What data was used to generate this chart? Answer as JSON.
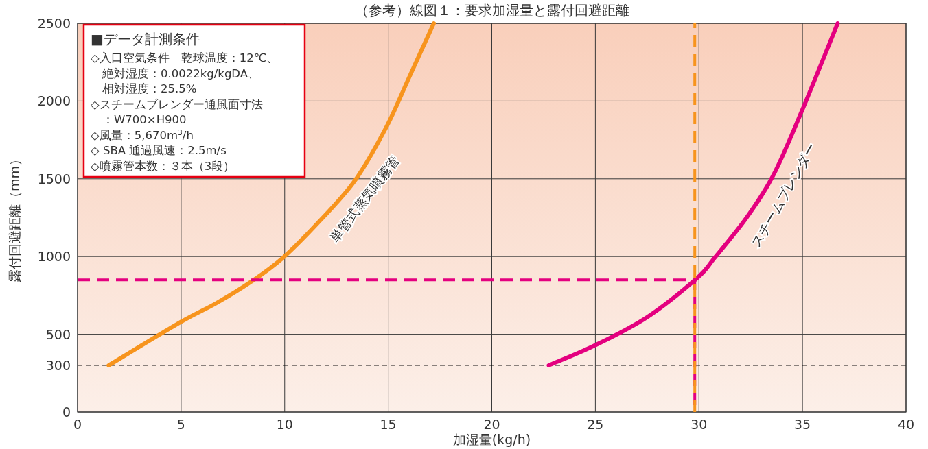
{
  "chart_data": {
    "type": "line",
    "title": "（参考）線図１：要求加湿量と露付回避距離",
    "xlabel": "加湿量(kg/h)",
    "ylabel": "露付回避距離（mm）",
    "xlim": [
      0,
      40
    ],
    "ylim": [
      0,
      2500
    ],
    "xticks": [
      0,
      5,
      10,
      15,
      20,
      25,
      30,
      35,
      40
    ],
    "yticks": [
      0,
      300,
      500,
      1000,
      1500,
      2000,
      2500
    ],
    "grid": true,
    "legend": false,
    "marker": "none",
    "series": [
      {
        "name": "単管式蒸気噴霧管",
        "color": "#f7941d",
        "x": [
          1.5,
          5.0,
          6.7,
          8.4,
          9.9,
          11.7,
          13.4,
          14.9,
          16.0,
          17.2
        ],
        "values": [
          300,
          580,
          700,
          840,
          990,
          1230,
          1490,
          1830,
          2150,
          2500
        ]
      },
      {
        "name": "スチームブレンダー",
        "color": "#e4007f",
        "x": [
          22.75,
          25.0,
          27.5,
          29.9,
          30.75,
          32.3,
          33.6,
          34.95,
          36.7
        ],
        "values": [
          300,
          430,
          610,
          860,
          990,
          1250,
          1525,
          1930,
          2500
        ]
      },
      {
        "color": "#e4007f",
        "line_style": "dashed",
        "x": [
          0,
          29.8,
          29.8
        ],
        "values": [
          850,
          850,
          0
        ]
      },
      {
        "color": "#f7941d",
        "line_style": "dashed",
        "x": [
          29.8,
          29.8
        ],
        "values": [
          0,
          2500
        ]
      }
    ],
    "ref_lines": [
      {
        "axis": "y",
        "value": 300,
        "color": "#000000",
        "line_style": "dashed"
      }
    ],
    "annotations": [
      "■データ計測条件",
      "◇入口空気条件　乾球温度：12℃、",
      "　絶対湿度：0.0022kg/kgDA、",
      "　相対湿度：25.5%",
      "◇スチームブレンダー通風面寸法",
      "　：W700×H900",
      "◇風量：5,670m$^{3}$/h",
      "◇ SBA 通過風速：2.5m/s",
      "◇噴霧管本数：３本（3段）"
    ]
  }
}
